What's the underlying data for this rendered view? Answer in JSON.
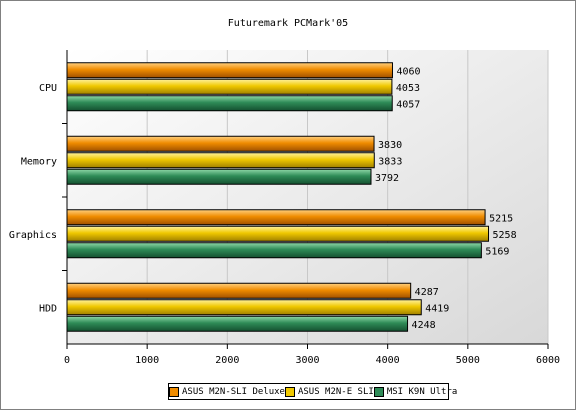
{
  "chart_data": {
    "type": "bar",
    "orientation": "horizontal",
    "title": "Futuremark PCMark'05",
    "categories": [
      "CPU",
      "Memory",
      "Graphics",
      "HDD"
    ],
    "series": [
      {
        "name": "ASUS M2N-SLI Deluxe",
        "color": "#f08c00",
        "values": [
          4060,
          3830,
          5215,
          4287
        ]
      },
      {
        "name": "ASUS M2N-E SLI",
        "color": "#f0c800",
        "values": [
          4053,
          3833,
          5258,
          4419
        ]
      },
      {
        "name": "MSI K9N Ultra",
        "color": "#2e8b57",
        "values": [
          4057,
          3792,
          5169,
          4248
        ]
      }
    ],
    "xlim": [
      0,
      6000
    ],
    "xticks": [
      "0",
      "1000",
      "2000",
      "3000",
      "4000",
      "5000",
      "6000"
    ],
    "grid": true,
    "legend_position": "bottom"
  }
}
